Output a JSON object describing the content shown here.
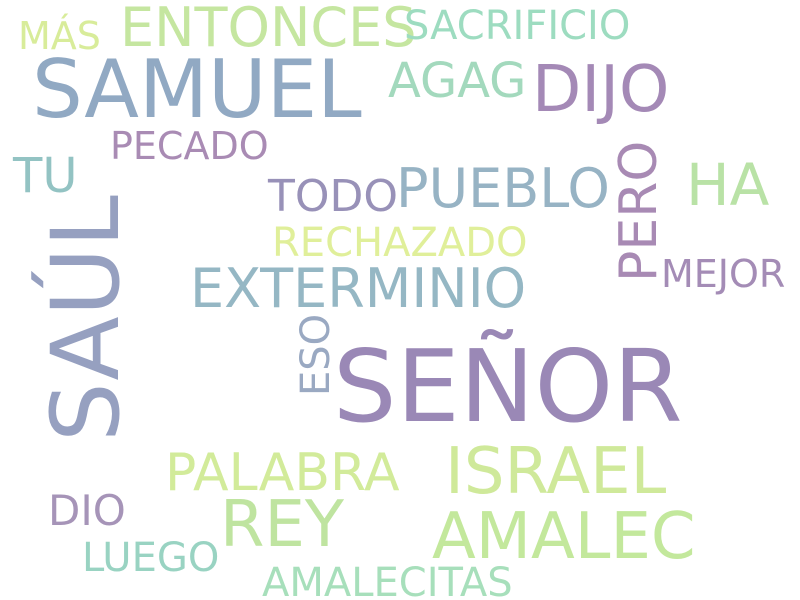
{
  "word_cloud": {
    "words": {
      "senor": {
        "text": "SEÑOR",
        "color": "#9a88b6"
      },
      "saul": {
        "text": "SAÚL",
        "color": "#96a0c0"
      },
      "samuel": {
        "text": "SAMUEL",
        "color": "#91a9c3"
      },
      "dijo": {
        "text": "DIJO",
        "color": "#a489b6"
      },
      "israel": {
        "text": "ISRAEL",
        "color": "#cfe99a"
      },
      "amalec": {
        "text": "AMALEC",
        "color": "#c3e89c"
      },
      "rey": {
        "text": "REY",
        "color": "#bfe4a0"
      },
      "entonces": {
        "text": "ENTONCES",
        "color": "#c5e6a0"
      },
      "ha": {
        "text": "HA",
        "color": "#b9e2a6"
      },
      "pueblo": {
        "text": "PUEBLO",
        "color": "#97b3c4"
      },
      "exterminio": {
        "text": "EXTERMINIO",
        "color": "#95b7c4"
      },
      "palabra": {
        "text": "PALABRA",
        "color": "#d2eb9a"
      },
      "agag": {
        "text": "AGAG",
        "color": "#a3d9bd"
      },
      "tu": {
        "text": "TU",
        "color": "#93c3c3"
      },
      "pero": {
        "text": "PERO",
        "color": "#a88ab4"
      },
      "sacrificio": {
        "text": "SACRIFICIO",
        "color": "#9ddcc0"
      },
      "todo": {
        "text": "TODO",
        "color": "#9891b8"
      },
      "rechazado": {
        "text": "RECHAZADO",
        "color": "#e0ef9a"
      },
      "pecado": {
        "text": "PECADO",
        "color": "#a98bb4"
      },
      "mejor": {
        "text": "MEJOR",
        "color": "#a48cb6"
      },
      "dio": {
        "text": "DIO",
        "color": "#a694b8"
      },
      "luego": {
        "text": "LUEGO",
        "color": "#99d3c2"
      },
      "amalecitas": {
        "text": "AMALECITAS",
        "color": "#a7dfbb"
      },
      "mas": {
        "text": "MÁS",
        "color": "#d8ec9a"
      },
      "eso": {
        "text": "ESO",
        "color": "#9aa9c2"
      }
    }
  }
}
